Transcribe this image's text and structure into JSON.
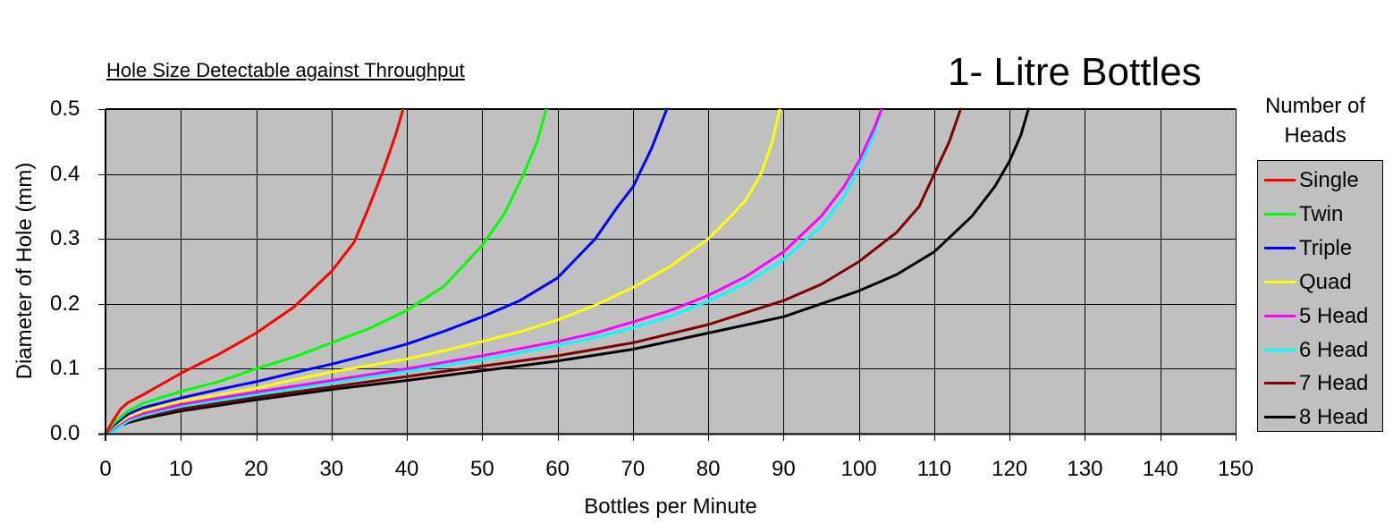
{
  "chart_data": {
    "type": "line",
    "title": "1- Litre Bottles",
    "subtitle": "Hole Size Detectable against Throughput",
    "xlabel": "Bottles per Minute",
    "ylabel": "Diameter of Hole (mm)",
    "xlim": [
      0,
      150
    ],
    "ylim": [
      0,
      0.5
    ],
    "xticks": [
      0,
      10,
      20,
      30,
      40,
      50,
      60,
      70,
      80,
      90,
      100,
      110,
      120,
      130,
      140,
      150
    ],
    "yticks": [
      "0.0",
      "0.1",
      "0.2",
      "0.3",
      "0.4",
      "0.5"
    ],
    "grid": true,
    "plot_background": "#c0c0c0",
    "legend_title": "Number of Heads",
    "legend_position": "right",
    "series": [
      {
        "name": "Single",
        "color": "#ff0000",
        "points": [
          [
            0,
            0
          ],
          [
            1,
            0.02
          ],
          [
            2,
            0.038
          ],
          [
            3,
            0.048
          ],
          [
            5,
            0.06
          ],
          [
            10,
            0.093
          ],
          [
            15,
            0.122
          ],
          [
            20,
            0.155
          ],
          [
            25,
            0.195
          ],
          [
            30,
            0.25
          ],
          [
            33,
            0.295
          ],
          [
            35,
            0.35
          ],
          [
            37,
            0.41
          ],
          [
            38.5,
            0.46
          ],
          [
            39.5,
            0.5
          ]
        ]
      },
      {
        "name": "Twin",
        "color": "#00ff00",
        "points": [
          [
            0,
            0
          ],
          [
            1,
            0.015
          ],
          [
            3,
            0.035
          ],
          [
            5,
            0.047
          ],
          [
            10,
            0.065
          ],
          [
            15,
            0.08
          ],
          [
            20,
            0.1
          ],
          [
            25,
            0.118
          ],
          [
            30,
            0.14
          ],
          [
            35,
            0.162
          ],
          [
            40,
            0.19
          ],
          [
            45,
            0.228
          ],
          [
            50,
            0.29
          ],
          [
            53,
            0.34
          ],
          [
            55.5,
            0.4
          ],
          [
            57.3,
            0.45
          ],
          [
            58.5,
            0.5
          ]
        ]
      },
      {
        "name": "Triple",
        "color": "#0000ff",
        "points": [
          [
            0,
            0
          ],
          [
            1,
            0.012
          ],
          [
            3,
            0.03
          ],
          [
            5,
            0.04
          ],
          [
            10,
            0.055
          ],
          [
            15,
            0.068
          ],
          [
            20,
            0.08
          ],
          [
            25,
            0.094
          ],
          [
            30,
            0.107
          ],
          [
            35,
            0.122
          ],
          [
            40,
            0.138
          ],
          [
            45,
            0.158
          ],
          [
            50,
            0.18
          ],
          [
            55,
            0.205
          ],
          [
            60,
            0.24
          ],
          [
            65,
            0.3
          ],
          [
            68,
            0.35
          ],
          [
            70,
            0.38
          ],
          [
            72.5,
            0.44
          ],
          [
            74.5,
            0.5
          ]
        ]
      },
      {
        "name": "Quad",
        "color": "#ffff00",
        "points": [
          [
            0,
            0
          ],
          [
            1,
            0.01
          ],
          [
            3,
            0.026
          ],
          [
            5,
            0.035
          ],
          [
            10,
            0.05
          ],
          [
            15,
            0.06
          ],
          [
            20,
            0.07
          ],
          [
            25,
            0.083
          ],
          [
            30,
            0.095
          ],
          [
            35,
            0.105
          ],
          [
            40,
            0.115
          ],
          [
            45,
            0.128
          ],
          [
            50,
            0.142
          ],
          [
            55,
            0.157
          ],
          [
            60,
            0.175
          ],
          [
            65,
            0.198
          ],
          [
            70,
            0.225
          ],
          [
            75,
            0.258
          ],
          [
            80,
            0.3
          ],
          [
            83,
            0.335
          ],
          [
            85,
            0.36
          ],
          [
            87,
            0.4
          ],
          [
            88.5,
            0.45
          ],
          [
            89.5,
            0.5
          ]
        ]
      },
      {
        "name": "5 Head",
        "color": "#ff00ff",
        "points": [
          [
            0,
            0
          ],
          [
            1,
            0.008
          ],
          [
            3,
            0.023
          ],
          [
            5,
            0.031
          ],
          [
            10,
            0.045
          ],
          [
            20,
            0.064
          ],
          [
            30,
            0.082
          ],
          [
            40,
            0.1
          ],
          [
            50,
            0.12
          ],
          [
            60,
            0.142
          ],
          [
            65,
            0.155
          ],
          [
            70,
            0.172
          ],
          [
            75,
            0.19
          ],
          [
            80,
            0.213
          ],
          [
            85,
            0.242
          ],
          [
            90,
            0.28
          ],
          [
            95,
            0.335
          ],
          [
            98,
            0.38
          ],
          [
            100,
            0.42
          ],
          [
            102,
            0.47
          ],
          [
            103,
            0.5
          ]
        ]
      },
      {
        "name": "6 Head",
        "color": "#00ffff",
        "points": [
          [
            0,
            0
          ],
          [
            1,
            0.003
          ],
          [
            3,
            0.02
          ],
          [
            5,
            0.028
          ],
          [
            10,
            0.042
          ],
          [
            20,
            0.06
          ],
          [
            30,
            0.078
          ],
          [
            40,
            0.096
          ],
          [
            50,
            0.114
          ],
          [
            60,
            0.136
          ],
          [
            65,
            0.148
          ],
          [
            70,
            0.163
          ],
          [
            75,
            0.181
          ],
          [
            80,
            0.204
          ],
          [
            85,
            0.232
          ],
          [
            90,
            0.268
          ],
          [
            95,
            0.32
          ],
          [
            98,
            0.365
          ],
          [
            100,
            0.41
          ],
          [
            102,
            0.46
          ],
          [
            103,
            0.5
          ]
        ]
      },
      {
        "name": "7 Head",
        "color": "#800000",
        "points": [
          [
            0,
            0
          ],
          [
            1,
            0.01
          ],
          [
            3,
            0.019
          ],
          [
            5,
            0.026
          ],
          [
            10,
            0.038
          ],
          [
            20,
            0.056
          ],
          [
            30,
            0.072
          ],
          [
            40,
            0.088
          ],
          [
            50,
            0.104
          ],
          [
            60,
            0.12
          ],
          [
            70,
            0.14
          ],
          [
            80,
            0.168
          ],
          [
            90,
            0.205
          ],
          [
            95,
            0.23
          ],
          [
            100,
            0.265
          ],
          [
            105,
            0.31
          ],
          [
            108,
            0.35
          ],
          [
            110,
            0.4
          ],
          [
            112,
            0.45
          ],
          [
            113.5,
            0.5
          ]
        ]
      },
      {
        "name": "8 Head",
        "color": "#000000",
        "points": [
          [
            0,
            0
          ],
          [
            1,
            0.008
          ],
          [
            3,
            0.017
          ],
          [
            5,
            0.023
          ],
          [
            10,
            0.035
          ],
          [
            20,
            0.052
          ],
          [
            30,
            0.068
          ],
          [
            40,
            0.082
          ],
          [
            50,
            0.097
          ],
          [
            60,
            0.112
          ],
          [
            70,
            0.13
          ],
          [
            80,
            0.155
          ],
          [
            90,
            0.18
          ],
          [
            100,
            0.22
          ],
          [
            105,
            0.245
          ],
          [
            110,
            0.28
          ],
          [
            115,
            0.335
          ],
          [
            118,
            0.38
          ],
          [
            120,
            0.42
          ],
          [
            121.5,
            0.46
          ],
          [
            122.5,
            0.5
          ]
        ]
      }
    ]
  }
}
